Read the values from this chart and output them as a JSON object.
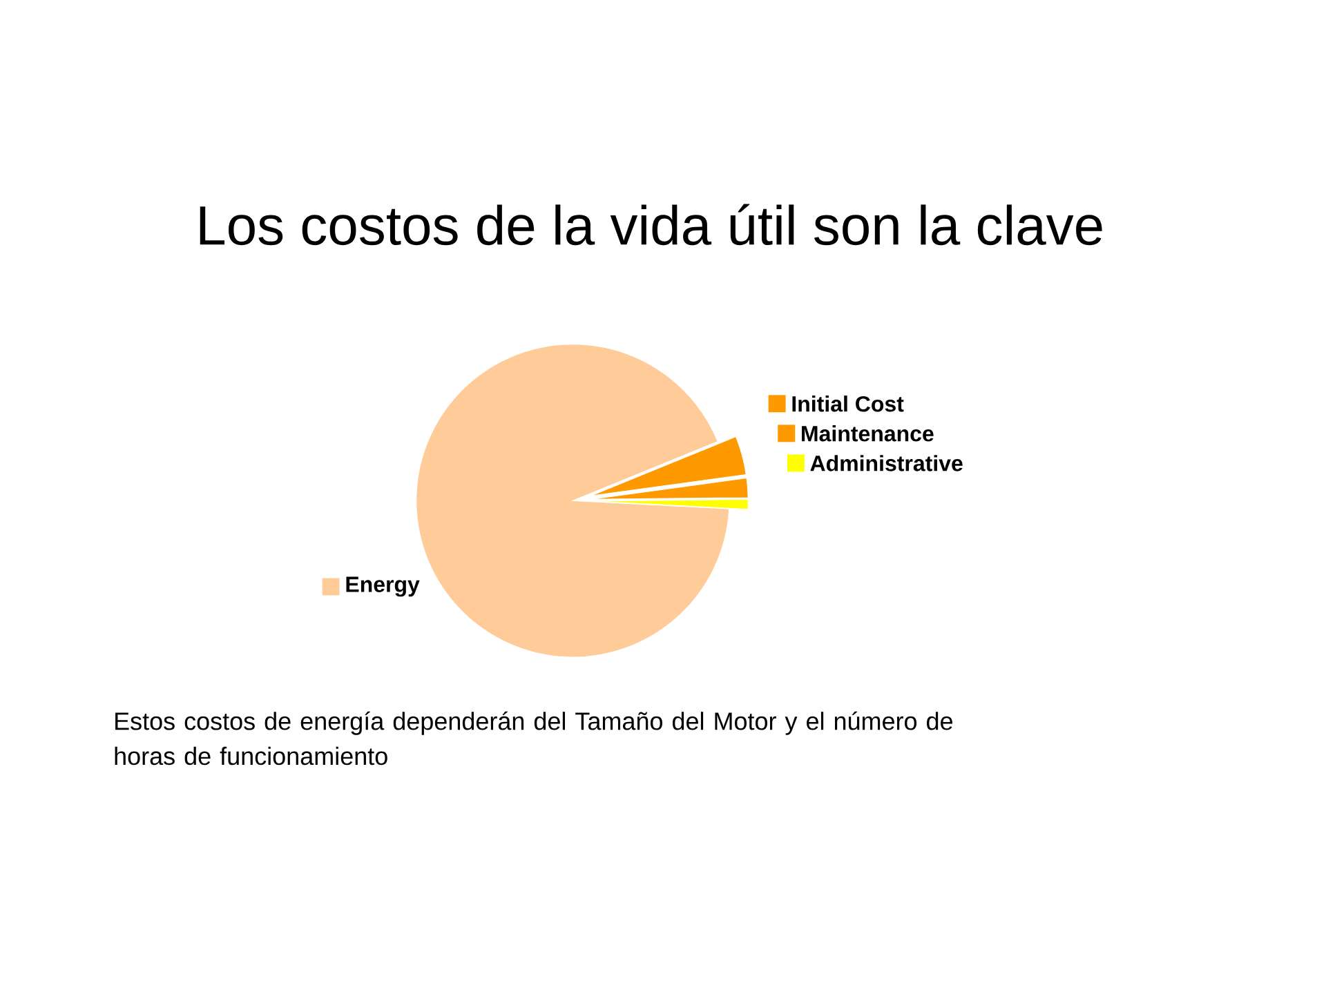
{
  "chart_data": {
    "type": "pie",
    "title": "Los costos de la vida útil son la clave",
    "categories": [
      "Energy",
      "Initial Cost",
      "Maintenance",
      "Administrative"
    ],
    "values": [
      93,
      4,
      2,
      1
    ],
    "colors": [
      "#ffcc99",
      "#ff9900",
      "#ff9900",
      "#ffff00"
    ],
    "legend": "right",
    "annotations": [
      "Estos costos de energía dependerán del Tamaño del Motor y el número de horas de funcionamiento"
    ]
  }
}
